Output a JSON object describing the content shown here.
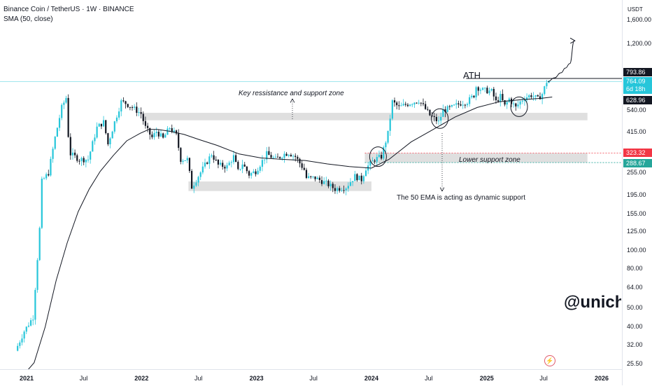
{
  "header": {
    "symbol_line": "Binance Coin / TetherUS · 1W · BINANCE",
    "indicator_line": "SMA (50, close)"
  },
  "currency": "USDT",
  "colors": {
    "up": "#26c6da",
    "down": "#131722",
    "sma": "#131722",
    "zone": "#d9d9d9",
    "resistance_line": "#f23645",
    "support_line": "#26a69a",
    "price_tag_bg": "#131722",
    "current_tag_bg": "#26c6da"
  },
  "annotations": {
    "ath": "ATH",
    "key_zone": "Key ressistance and support zone",
    "lower_zone": "Lower support zone",
    "ema_note": "The 50 EMA is acting as dynamic support"
  },
  "price_tags": {
    "ath_price": "793.86",
    "current_price": "764.09",
    "countdown": "6d 18h",
    "sma_value": "628.96",
    "resistance": "323.32",
    "support": "288.67"
  },
  "watermark": "@unichar",
  "chart_data": {
    "type": "candlestick",
    "title": "Binance Coin / TetherUS · 1W · BINANCE",
    "ylabel": "USDT",
    "log_scale": true,
    "ylim": [
      23,
      1900
    ],
    "y_ticks": [
      "1,600.00",
      "1,200.00",
      "540.00",
      "415.00",
      "255.00",
      "195.00",
      "155.00",
      "125.00",
      "100.00",
      "80.00",
      "64.00",
      "50.00",
      "40.00",
      "32.00",
      "25.50"
    ],
    "y_tick_values": [
      1600,
      1200,
      540,
      415,
      255,
      195,
      155,
      125,
      100,
      80,
      64,
      50,
      40,
      32,
      25.5
    ],
    "x_ticks": [
      "2021",
      "Jul",
      "2022",
      "Jul",
      "2023",
      "Jul",
      "2024",
      "Jul",
      "2025",
      "Jul",
      "2026"
    ],
    "x_tick_dates": [
      "2021-01-01",
      "2021-07-01",
      "2022-01-01",
      "2022-07-01",
      "2023-01-01",
      "2023-07-01",
      "2024-01-01",
      "2024-07-01",
      "2025-01-01",
      "2025-07-01",
      "2026-01-01"
    ],
    "start_date": "2020-11-30",
    "interval": "1W",
    "price_path": [
      [
        "2020-11-30",
        30
      ],
      [
        "2020-12-28",
        38
      ],
      [
        "2021-01-25",
        45
      ],
      [
        "2021-02-15",
        130
      ],
      [
        "2021-02-22",
        230
      ],
      [
        "2021-03-15",
        255
      ],
      [
        "2021-04-05",
        390
      ],
      [
        "2021-04-26",
        560
      ],
      [
        "2021-05-10",
        630
      ],
      [
        "2021-05-17",
        400
      ],
      [
        "2021-05-24",
        320
      ],
      [
        "2021-06-21",
        300
      ],
      [
        "2021-07-19",
        300
      ],
      [
        "2021-08-16",
        440
      ],
      [
        "2021-09-06",
        470
      ],
      [
        "2021-09-20",
        360
      ],
      [
        "2021-10-11",
        470
      ],
      [
        "2021-11-01",
        600
      ],
      [
        "2021-11-15",
        590
      ],
      [
        "2021-12-06",
        560
      ],
      [
        "2022-01-03",
        520
      ],
      [
        "2022-01-17",
        440
      ],
      [
        "2022-02-07",
        390
      ],
      [
        "2022-02-21",
        420
      ],
      [
        "2022-03-14",
        385
      ],
      [
        "2022-04-04",
        440
      ],
      [
        "2022-04-25",
        400
      ],
      [
        "2022-05-09",
        300
      ],
      [
        "2022-05-30",
        300
      ],
      [
        "2022-06-13",
        215
      ],
      [
        "2022-06-27",
        235
      ],
      [
        "2022-07-25",
        280
      ],
      [
        "2022-08-15",
        320
      ],
      [
        "2022-09-05",
        280
      ],
      [
        "2022-10-03",
        275
      ],
      [
        "2022-10-24",
        310
      ],
      [
        "2022-11-07",
        260
      ],
      [
        "2022-11-21",
        285
      ],
      [
        "2022-12-12",
        250
      ],
      [
        "2023-01-02",
        260
      ],
      [
        "2023-02-06",
        320
      ],
      [
        "2023-03-06",
        300
      ],
      [
        "2023-04-03",
        320
      ],
      [
        "2023-04-17",
        325
      ],
      [
        "2023-05-08",
        310
      ],
      [
        "2023-06-05",
        265
      ],
      [
        "2023-06-12",
        240
      ],
      [
        "2023-07-10",
        240
      ],
      [
        "2023-08-14",
        225
      ],
      [
        "2023-09-11",
        210
      ],
      [
        "2023-10-16",
        215
      ],
      [
        "2023-11-13",
        245
      ],
      [
        "2023-12-04",
        235
      ],
      [
        "2023-12-18",
        270
      ],
      [
        "2024-01-15",
        300
      ],
      [
        "2024-02-05",
        310
      ],
      [
        "2024-02-26",
        410
      ],
      [
        "2024-03-11",
        600
      ],
      [
        "2024-04-01",
        560
      ],
      [
        "2024-04-22",
        580
      ],
      [
        "2024-06-03",
        610
      ],
      [
        "2024-06-17",
        570
      ],
      [
        "2024-07-08",
        510
      ],
      [
        "2024-08-05",
        470
      ],
      [
        "2024-08-19",
        540
      ],
      [
        "2024-09-16",
        560
      ],
      [
        "2024-10-14",
        590
      ],
      [
        "2024-11-04",
        600
      ],
      [
        "2024-11-25",
        650
      ],
      [
        "2024-12-02",
        720
      ],
      [
        "2024-12-23",
        690
      ],
      [
        "2025-01-20",
        680
      ],
      [
        "2025-02-03",
        600
      ],
      [
        "2025-02-17",
        640
      ],
      [
        "2025-03-03",
        570
      ],
      [
        "2025-03-17",
        620
      ],
      [
        "2025-04-07",
        560
      ],
      [
        "2025-04-21",
        600
      ],
      [
        "2025-05-05",
        630
      ],
      [
        "2025-05-26",
        650
      ],
      [
        "2025-06-16",
        620
      ],
      [
        "2025-06-30",
        660
      ],
      [
        "2025-07-14",
        764
      ]
    ],
    "sma_path": [
      [
        "2020-12-28",
        23
      ],
      [
        "2021-01-25",
        26
      ],
      [
        "2021-03-01",
        40
      ],
      [
        "2021-04-05",
        70
      ],
      [
        "2021-05-10",
        110
      ],
      [
        "2021-06-14",
        160
      ],
      [
        "2021-07-19",
        210
      ],
      [
        "2021-08-23",
        260
      ],
      [
        "2021-10-04",
        315
      ],
      [
        "2021-11-15",
        375
      ],
      [
        "2021-12-27",
        410
      ],
      [
        "2022-01-24",
        430
      ],
      [
        "2022-02-21",
        430
      ],
      [
        "2022-04-04",
        420
      ],
      [
        "2022-05-16",
        405
      ],
      [
        "2022-07-04",
        380
      ],
      [
        "2022-08-29",
        355
      ],
      [
        "2022-11-07",
        320
      ],
      [
        "2023-01-16",
        305
      ],
      [
        "2023-03-27",
        300
      ],
      [
        "2023-06-05",
        296
      ],
      [
        "2023-08-14",
        284
      ],
      [
        "2023-10-23",
        275
      ],
      [
        "2024-01-01",
        270
      ],
      [
        "2024-02-26",
        300
      ],
      [
        "2024-05-06",
        370
      ],
      [
        "2024-07-15",
        430
      ],
      [
        "2024-09-23",
        500
      ],
      [
        "2024-12-02",
        560
      ],
      [
        "2025-02-10",
        600
      ],
      [
        "2025-04-21",
        615
      ],
      [
        "2025-06-23",
        625
      ],
      [
        "2025-07-28",
        635
      ]
    ],
    "projection_path": [
      [
        "2025-07-14",
        764
      ],
      [
        "2025-08-04",
        800
      ],
      [
        "2025-08-25",
        850
      ],
      [
        "2025-09-08",
        900
      ],
      [
        "2025-09-22",
        950
      ],
      [
        "2025-10-06",
        1250
      ]
    ],
    "levels": {
      "ath": 793.86,
      "current": 764.09,
      "sma_last": 628.96,
      "resistance": 323.32,
      "support": 288.67
    },
    "zones": [
      {
        "name": "Key ressistance and support zone",
        "from": "2022-01-03",
        "to": "2025-11-17",
        "low": 480,
        "high": 525
      },
      {
        "name": "Lower support zone",
        "from": "2023-12-11",
        "to": "2025-11-17",
        "low": 288.67,
        "high": 323.32
      },
      {
        "from": "2022-05-30",
        "to": "2024-01-01",
        "low": 205,
        "high": 230
      }
    ],
    "circles": [
      {
        "date": "2024-01-22",
        "price": 310
      },
      {
        "date": "2024-08-05",
        "price": 490
      },
      {
        "date": "2025-04-14",
        "price": 565
      }
    ],
    "grid": false
  }
}
